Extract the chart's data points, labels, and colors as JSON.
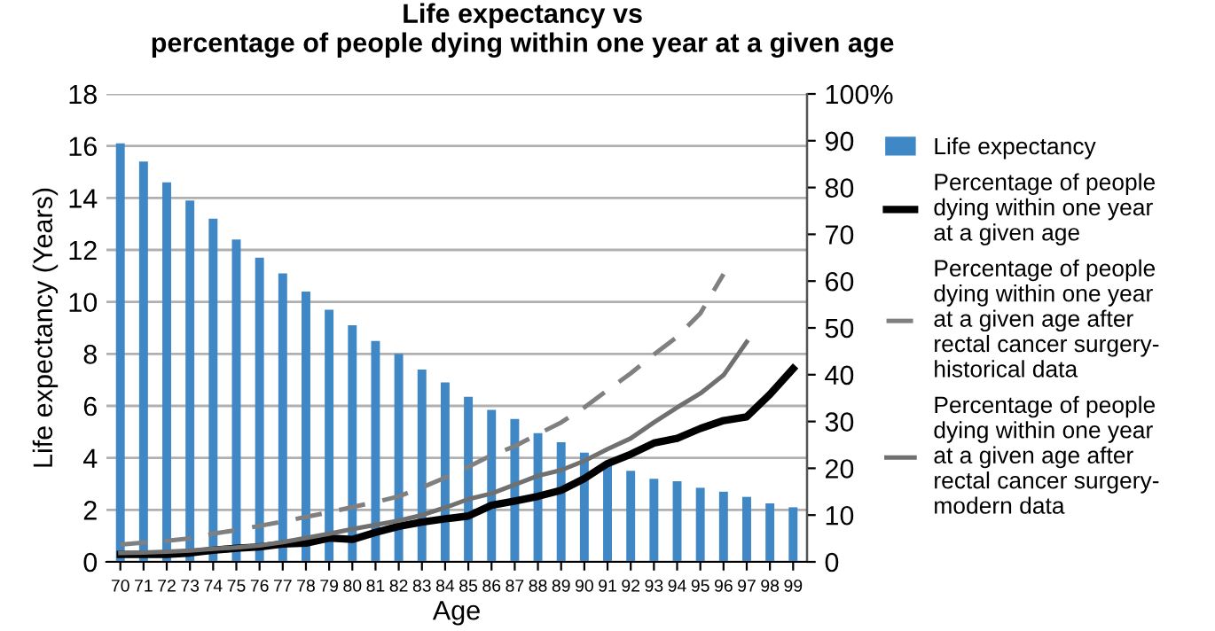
{
  "chart_data": {
    "type": "bar",
    "title": "Life expectancy vs\npercentage of people dying within one year at a given age",
    "xlabel": "Age",
    "ylabel": "Life expectancy (Years)",
    "categories": [
      "70",
      "71",
      "72",
      "73",
      "74",
      "75",
      "76",
      "77",
      "78",
      "79",
      "80",
      "81",
      "82",
      "83",
      "84",
      "85",
      "86",
      "87",
      "88",
      "89",
      "90",
      "91",
      "92",
      "93",
      "94",
      "95",
      "96",
      "97",
      "98",
      "99"
    ],
    "series": [
      {
        "name": "Life expectancy",
        "color": "#3f88c5",
        "values": [
          16.1,
          15.4,
          14.6,
          13.9,
          13.2,
          12.4,
          11.7,
          11.1,
          10.4,
          9.7,
          9.1,
          8.5,
          8.0,
          7.4,
          6.9,
          6.35,
          5.85,
          5.5,
          4.95,
          4.6,
          4.2,
          3.8,
          3.5,
          3.2,
          3.1,
          2.85,
          2.7,
          2.5,
          2.25,
          2.1
        ]
      },
      {
        "name": "Percentage of people\ndying within one year\nat a given age",
        "type": "line",
        "axis": "y2",
        "color": "#000000",
        "line_style": "solid",
        "values": [
          1.6,
          1.6,
          1.6,
          1.9,
          2.5,
          2.9,
          3.2,
          3.8,
          4.0,
          5.1,
          4.8,
          6.3,
          7.6,
          8.5,
          9.2,
          9.8,
          12.1,
          13.0,
          14.0,
          15.3,
          17.8,
          21.0,
          23.0,
          25.4,
          26.4,
          28.5,
          30.2,
          31.0,
          35.8,
          41.3
        ]
      },
      {
        "name": "Percentage of people\ndying within one year\nat a given age after\nrectal cancer surgery-\nhistorical data",
        "type": "line",
        "axis": "y2",
        "color": "#808080",
        "line_style": "dashed",
        "values": [
          3.7,
          4.1,
          4.5,
          5.0,
          6.0,
          6.8,
          7.7,
          8.6,
          9.6,
          10.6,
          11.7,
          12.8,
          14.0,
          15.9,
          18.0,
          20.3,
          22.8,
          24.7,
          27.3,
          29.8,
          33.0,
          36.7,
          40.3,
          44.3,
          48.1,
          53.1,
          61.5,
          null,
          null,
          null
        ]
      },
      {
        "name": "Percentage of people\ndying within one year\nat a given age after\nrectal cancer surgery-\nmodern data",
        "type": "line",
        "axis": "y2",
        "color": "#707070",
        "line_style": "solid",
        "values": [
          1.9,
          2.0,
          2.2,
          2.4,
          2.8,
          3.1,
          3.5,
          4.2,
          5.1,
          6.0,
          7.0,
          7.9,
          8.8,
          10.0,
          11.6,
          13.4,
          14.6,
          16.5,
          18.4,
          19.6,
          21.6,
          24.1,
          26.4,
          29.8,
          33.0,
          36.0,
          39.9,
          47.0,
          null,
          null
        ]
      }
    ],
    "ylim": [
      0,
      18
    ],
    "yticks": [
      0,
      2,
      4,
      6,
      8,
      10,
      12,
      14,
      16,
      18
    ],
    "y2lim": [
      0,
      100
    ],
    "y2ticks": [
      0,
      10,
      20,
      30,
      40,
      50,
      60,
      70,
      80,
      90,
      {
        "value": 100,
        "label": "100%"
      }
    ],
    "grid": "y",
    "legend": "right"
  }
}
